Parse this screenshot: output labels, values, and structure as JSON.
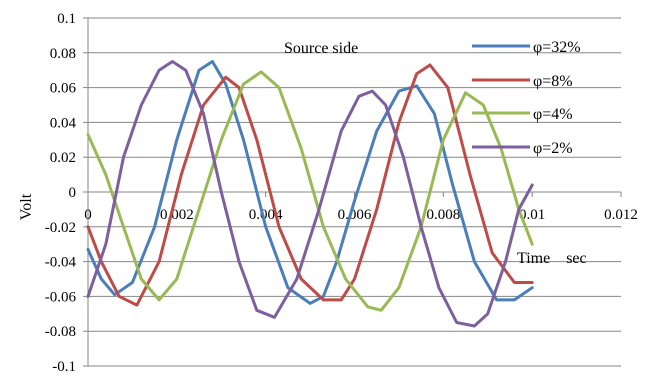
{
  "chart_data": {
    "type": "line",
    "title": "",
    "annotation": "Source side",
    "xlabel": "Time　sec",
    "ylabel": "Volt",
    "xlim": [
      0,
      0.012
    ],
    "ylim": [
      -0.1,
      0.1
    ],
    "x_ticks": [
      0,
      0.002,
      0.004,
      0.006,
      0.008,
      0.01,
      0.012
    ],
    "x_tick_labels": [
      "0",
      "0.002",
      "0.004",
      "0.006",
      "0.008",
      "0.01",
      "0.012"
    ],
    "y_ticks": [
      0.1,
      0.08,
      0.06,
      0.04,
      0.02,
      0,
      -0.02,
      -0.04,
      -0.06,
      -0.08,
      -0.1
    ],
    "y_tick_labels": [
      "0.1",
      "0.08",
      "0.06",
      "0.04",
      "0.02",
      "0",
      "-0.02",
      "-0.04",
      "-0.06",
      "-0.08",
      "-0.1"
    ],
    "grid": "horizontal",
    "legend_position": "top-right",
    "series": [
      {
        "name": "φ=32%",
        "color": "#4A7EBB",
        "x": [
          0,
          0.0003,
          0.0006,
          0.001,
          0.0015,
          0.002,
          0.0025,
          0.0028,
          0.0031,
          0.0035,
          0.004,
          0.0045,
          0.005,
          0.0053,
          0.0056,
          0.006,
          0.0065,
          0.007,
          0.0074,
          0.0078,
          0.0082,
          0.0087,
          0.0092,
          0.0096,
          0.01
        ],
        "y": [
          -0.033,
          -0.05,
          -0.059,
          -0.052,
          -0.02,
          0.03,
          0.07,
          0.075,
          0.062,
          0.03,
          -0.02,
          -0.055,
          -0.064,
          -0.06,
          -0.04,
          -0.005,
          0.035,
          0.058,
          0.061,
          0.045,
          0.005,
          -0.04,
          -0.062,
          -0.062,
          -0.055
        ]
      },
      {
        "name": "φ=8%",
        "color": "#BE4B48",
        "x": [
          0,
          0.0003,
          0.0007,
          0.0011,
          0.0016,
          0.0021,
          0.0026,
          0.0031,
          0.0034,
          0.0038,
          0.0043,
          0.0048,
          0.0053,
          0.0057,
          0.006,
          0.0065,
          0.007,
          0.0074,
          0.0077,
          0.0081,
          0.0086,
          0.0091,
          0.0096,
          0.01
        ],
        "y": [
          -0.02,
          -0.04,
          -0.06,
          -0.065,
          -0.04,
          0.01,
          0.05,
          0.066,
          0.06,
          0.03,
          -0.02,
          -0.05,
          -0.062,
          -0.062,
          -0.05,
          -0.01,
          0.04,
          0.068,
          0.073,
          0.06,
          0.01,
          -0.035,
          -0.052,
          -0.052
        ]
      },
      {
        "name": "φ=4%",
        "color": "#98B954",
        "x": [
          0,
          0.0004,
          0.0008,
          0.0012,
          0.0016,
          0.002,
          0.0025,
          0.003,
          0.0035,
          0.0039,
          0.0043,
          0.0048,
          0.0053,
          0.0058,
          0.0063,
          0.0066,
          0.007,
          0.0075,
          0.008,
          0.0085,
          0.0089,
          0.0093,
          0.0097,
          0.01
        ],
        "y": [
          0.033,
          0.01,
          -0.02,
          -0.05,
          -0.062,
          -0.05,
          -0.01,
          0.03,
          0.062,
          0.069,
          0.06,
          0.025,
          -0.02,
          -0.05,
          -0.066,
          -0.068,
          -0.055,
          -0.02,
          0.03,
          0.057,
          0.05,
          0.025,
          -0.01,
          -0.03
        ]
      },
      {
        "name": "φ=2%",
        "color": "#7D5FA0",
        "x": [
          0,
          0.0004,
          0.0008,
          0.0012,
          0.0016,
          0.0019,
          0.0022,
          0.0026,
          0.003,
          0.0034,
          0.0038,
          0.0042,
          0.0047,
          0.0052,
          0.0057,
          0.0061,
          0.0064,
          0.0067,
          0.0071,
          0.0075,
          0.0079,
          0.0083,
          0.0087,
          0.009,
          0.0094,
          0.0097,
          0.01
        ],
        "y": [
          -0.06,
          -0.03,
          0.02,
          0.05,
          0.07,
          0.075,
          0.07,
          0.045,
          0.0,
          -0.04,
          -0.068,
          -0.072,
          -0.05,
          -0.01,
          0.035,
          0.055,
          0.058,
          0.05,
          0.02,
          -0.02,
          -0.055,
          -0.075,
          -0.077,
          -0.07,
          -0.04,
          -0.01,
          0.004
        ]
      }
    ]
  }
}
